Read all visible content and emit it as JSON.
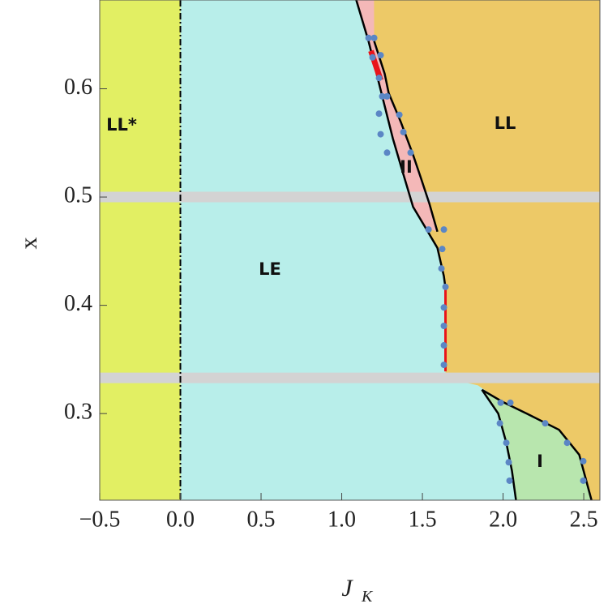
{
  "chart_data": {
    "type": "phase",
    "xlabel": "J",
    "xlabel_sub": "K",
    "ylabel": "x",
    "xlim": [
      -0.5,
      2.6
    ],
    "ylim": [
      0.22,
      0.682
    ],
    "xticks": [
      {
        "value": -0.5,
        "label": "−0.5"
      },
      {
        "value": 0,
        "label": "0.0"
      },
      0.5,
      {
        "value": 1,
        "label": "1.0"
      },
      1.5,
      {
        "value": 2,
        "label": "2.0"
      },
      2.5
    ],
    "yticks": [
      0.3,
      0.4,
      0.5,
      0.6
    ],
    "regions": [
      {
        "name": "LL*",
        "color": "#e2ef63",
        "x": [
          -0.5,
          0,
          0,
          -0.5
        ],
        "y": [
          0.22,
          0.22,
          0.682,
          0.682
        ]
      },
      {
        "name": "LE",
        "color": "#b8eeea",
        "x": [
          0,
          2.6,
          2.6,
          0
        ],
        "y": [
          0.22,
          0.22,
          0.682,
          0.682
        ]
      },
      {
        "name": "LL",
        "color": "#edc967",
        "x": [
          1.09,
          1.166,
          1.241,
          1.317,
          1.382,
          1.442,
          1.518,
          1.593,
          1.633,
          1.643,
          1.643,
          1.844,
          1.995,
          2.146,
          2.347,
          2.472,
          2.548,
          2.6,
          2.6
        ],
        "y": [
          0.682,
          0.644,
          0.599,
          0.554,
          0.521,
          0.491,
          0.472,
          0.453,
          0.427,
          0.416,
          0.333,
          0.326,
          0.311,
          0.3,
          0.285,
          0.262,
          0.22,
          0.22,
          0.682
        ]
      },
      {
        "name": "II",
        "color": "#f4b8b8",
        "x": [
          1.09,
          1.166,
          1.241,
          1.317,
          1.382,
          1.442,
          1.518,
          1.593,
          1.543,
          1.492,
          1.442,
          1.367,
          1.291,
          1.266,
          1.201,
          1.2
        ],
        "y": [
          0.682,
          0.644,
          0.599,
          0.554,
          0.521,
          0.491,
          0.472,
          0.468,
          0.494,
          0.517,
          0.539,
          0.569,
          0.596,
          0.614,
          0.644,
          0.682
        ]
      },
      {
        "name": "I",
        "color": "#b8e6ae",
        "x": [
          1.869,
          1.97,
          2.02,
          2.055,
          2.08,
          2.548,
          2.472,
          2.347,
          2.146,
          1.995
        ],
        "y": [
          0.322,
          0.3,
          0.273,
          0.247,
          0.22,
          0.22,
          0.262,
          0.285,
          0.3,
          0.311
        ]
      }
    ],
    "lines": [
      {
        "color": "#000000",
        "x": [
          1.09,
          1.166,
          1.241,
          1.317,
          1.382,
          1.442,
          1.518,
          1.593,
          1.633,
          1.643
        ],
        "y": [
          0.682,
          0.644,
          0.599,
          0.554,
          0.521,
          0.491,
          0.472,
          0.453,
          0.427,
          0.416
        ]
      },
      {
        "color": "#000000",
        "x": [
          1.201,
          1.266,
          1.291,
          1.367,
          1.442,
          1.492,
          1.543,
          1.593
        ],
        "y": [
          0.644,
          0.614,
          0.596,
          0.569,
          0.539,
          0.517,
          0.494,
          0.468
        ]
      },
      {
        "color": "#000000",
        "x": [
          1.869,
          1.97,
          2.02,
          2.055,
          2.08
        ],
        "y": [
          0.322,
          0.3,
          0.273,
          0.247,
          0.22
        ]
      },
      {
        "color": "#000000",
        "x": [
          1.869,
          1.995,
          2.146,
          2.347,
          2.472,
          2.548
        ],
        "y": [
          0.322,
          0.311,
          0.3,
          0.285,
          0.262,
          0.22
        ]
      },
      {
        "color": "#e8141a",
        "x": [
          1.643,
          1.643
        ],
        "y": [
          0.416,
          0.339
        ]
      },
      {
        "color": "#e8141a",
        "x": [
          1.181,
          1.241
        ],
        "y": [
          0.635,
          0.608
        ]
      }
    ],
    "dashed_line_x": 0,
    "bands": {
      "color": "#d3d3d3",
      "y": [
        0.5,
        0.333
      ]
    },
    "points": {
      "color": "#5b86c5",
      "x": [
        1.166,
        1.201,
        1.191,
        1.241,
        1.231,
        1.251,
        1.281,
        1.231,
        1.357,
        1.382,
        1.241,
        1.281,
        1.427,
        1.538,
        1.633,
        1.623,
        1.618,
        1.643,
        1.633,
        1.633,
        1.633,
        1.633,
        1.985,
        2.045,
        1.98,
        2.02,
        2.261,
        2.035,
        2.397,
        2.497,
        2.04,
        2.497
      ],
      "y": [
        0.647,
        0.647,
        0.629,
        0.631,
        0.61,
        0.593,
        0.593,
        0.577,
        0.576,
        0.56,
        0.558,
        0.541,
        0.541,
        0.47,
        0.47,
        0.452,
        0.434,
        0.417,
        0.398,
        0.381,
        0.363,
        0.345,
        0.31,
        0.31,
        0.291,
        0.273,
        0.291,
        0.255,
        0.273,
        0.256,
        0.238,
        0.238
      ]
    }
  }
}
